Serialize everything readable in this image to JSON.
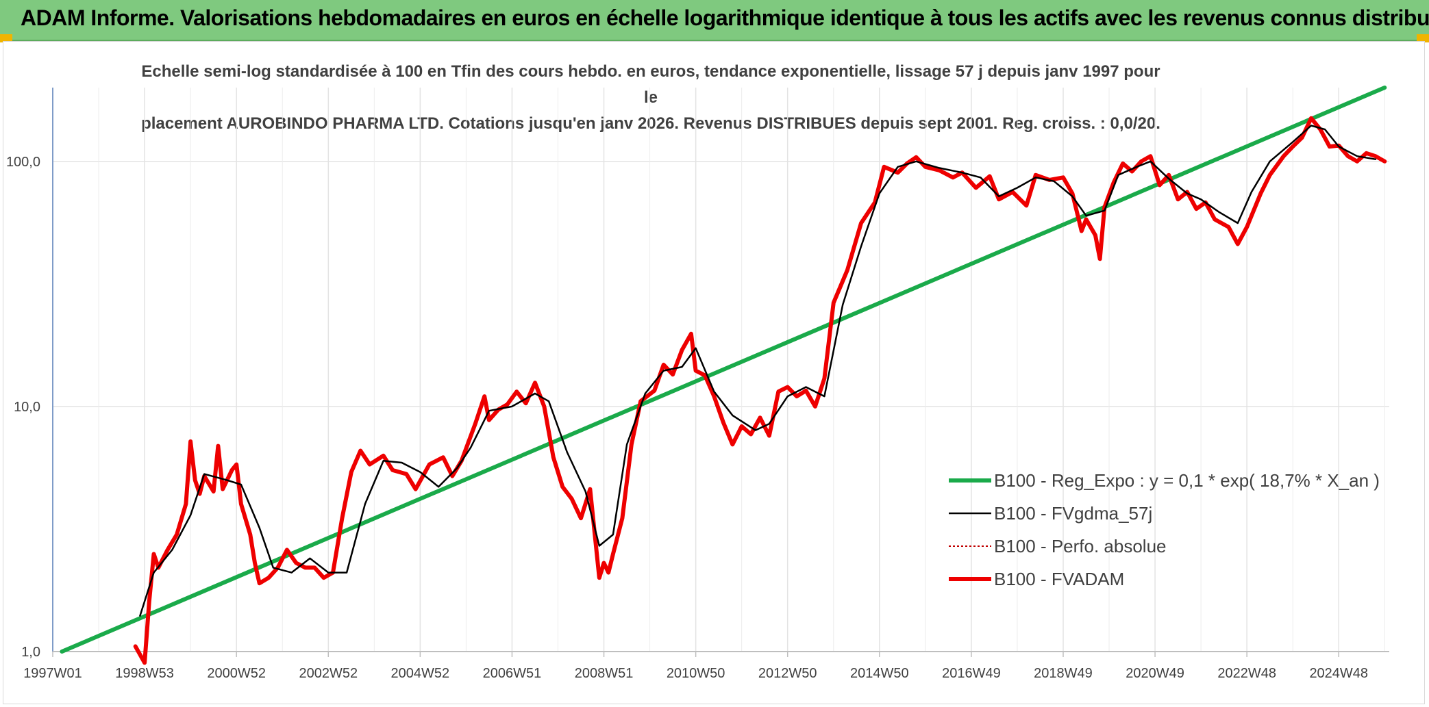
{
  "header": {
    "title": "ADAM Informe. Valorisations hebdomadaires en euros en échelle logarithmique identique à tous les actifs avec les revenus connus distribués",
    "background_color": "#7fc97f"
  },
  "chart_data": {
    "type": "line",
    "title_line1": "Echelle semi-log standardisée à 100 en Tfin des cours hebdo. en euros, tendance exponentielle, lissage 57 j depuis janv 1997 pour le",
    "title_line2": "placement AUROBINDO PHARMA LTD. Cotations jusqu'en janv 2026. Revenus DISTRIBUES depuis sept 2001. Reg. croiss. : 0,0/20.",
    "xlabel": "",
    "ylabel": "",
    "y_scale": "log",
    "ylim": [
      1,
      200
    ],
    "xlim": [
      1997.0,
      2026.1
    ],
    "y_ticks": [
      {
        "value": 1,
        "label": "1,0"
      },
      {
        "value": 10,
        "label": "10,0"
      },
      {
        "value": 100,
        "label": "100,0"
      }
    ],
    "x_ticks": [
      {
        "value": 1997.0,
        "label": "1997W01"
      },
      {
        "value": 1999.0,
        "label": "1998W53"
      },
      {
        "value": 2001.0,
        "label": "2000W52"
      },
      {
        "value": 2003.0,
        "label": "2002W52"
      },
      {
        "value": 2005.0,
        "label": "2004W52"
      },
      {
        "value": 2007.0,
        "label": "2006W51"
      },
      {
        "value": 2009.0,
        "label": "2008W51"
      },
      {
        "value": 2011.0,
        "label": "2010W50"
      },
      {
        "value": 2013.0,
        "label": "2012W50"
      },
      {
        "value": 2015.0,
        "label": "2014W50"
      },
      {
        "value": 2017.0,
        "label": "2016W49"
      },
      {
        "value": 2019.0,
        "label": "2018W49"
      },
      {
        "value": 2021.0,
        "label": "2020W49"
      },
      {
        "value": 2023.0,
        "label": "2022W48"
      },
      {
        "value": 2025.0,
        "label": "2024W48"
      }
    ],
    "grid": "vertical and horizontal",
    "legend_position": "bottom-right",
    "series": [
      {
        "name": "B100 - Reg_Expo : y = 0,1 * exp( 18,7% *  X_an )",
        "color": "#1aaa4a",
        "style": "solid-thick",
        "x": [
          1997.2,
          2026.0
        ],
        "y": [
          1.0,
          200.0
        ]
      },
      {
        "name": "B100 - FVgdma_57j",
        "color": "#000000",
        "style": "solid",
        "x": [
          1998.9,
          1999.2,
          1999.6,
          2000.0,
          2000.3,
          2000.8,
          2001.1,
          2001.5,
          2001.8,
          2002.2,
          2002.6,
          2003.0,
          2003.4,
          2003.8,
          2004.2,
          2004.6,
          2005.0,
          2005.4,
          2005.8,
          2006.1,
          2006.5,
          2007.0,
          2007.5,
          2007.8,
          2008.2,
          2008.6,
          2008.9,
          2009.2,
          2009.5,
          2009.9,
          2010.3,
          2010.7,
          2011.0,
          2011.4,
          2011.8,
          2012.3,
          2012.6,
          2013.0,
          2013.4,
          2013.8,
          2014.2,
          2014.6,
          2015.0,
          2015.4,
          2015.8,
          2016.3,
          2016.8,
          2017.2,
          2017.6,
          2018.0,
          2018.4,
          2018.8,
          2019.2,
          2019.5,
          2019.9,
          2020.2,
          2020.6,
          2020.9,
          2021.3,
          2021.7,
          2022.0,
          2022.4,
          2022.8,
          2023.1,
          2023.5,
          2024.0,
          2024.4,
          2024.7,
          2025.0,
          2025.4,
          2025.8
        ],
        "y": [
          1.4,
          2.1,
          2.6,
          3.6,
          5.3,
          5.0,
          4.8,
          3.2,
          2.2,
          2.1,
          2.4,
          2.1,
          2.1,
          4.0,
          6.0,
          5.9,
          5.4,
          4.7,
          5.6,
          6.8,
          9.6,
          10.0,
          11.3,
          10.5,
          6.5,
          4.5,
          2.7,
          3.0,
          7.0,
          11.3,
          14.0,
          14.5,
          17.3,
          11.5,
          9.2,
          8.0,
          8.5,
          11.0,
          12.0,
          11.0,
          26.0,
          45.0,
          74.0,
          95.0,
          100.0,
          94.0,
          90.0,
          86.0,
          72.0,
          78.0,
          86.0,
          83.0,
          72.0,
          60.0,
          63.0,
          88.0,
          95.0,
          100.0,
          85.0,
          74.0,
          70.0,
          62.0,
          56.0,
          75.0,
          100.0,
          120.0,
          140.0,
          135.0,
          115.0,
          105.0,
          102.0
        ]
      },
      {
        "name": "B100 - Perfo. absolue",
        "color": "#c00000",
        "style": "dotted",
        "x": [],
        "y": []
      },
      {
        "name": "B100 - FVADAM",
        "color": "#ee0000",
        "style": "solid-thick",
        "x": [
          1998.8,
          1999.0,
          1999.1,
          1999.2,
          1999.3,
          1999.5,
          1999.7,
          1999.9,
          2000.0,
          2000.1,
          2000.2,
          2000.3,
          2000.5,
          2000.6,
          2000.7,
          2000.9,
          2001.0,
          2001.1,
          2001.3,
          2001.4,
          2001.5,
          2001.7,
          2001.9,
          2002.1,
          2002.3,
          2002.5,
          2002.7,
          2002.9,
          2003.1,
          2003.3,
          2003.5,
          2003.7,
          2003.9,
          2004.2,
          2004.4,
          2004.7,
          2004.9,
          2005.2,
          2005.5,
          2005.7,
          2005.9,
          2006.2,
          2006.4,
          2006.5,
          2006.7,
          2006.9,
          2007.1,
          2007.3,
          2007.5,
          2007.7,
          2007.9,
          2008.1,
          2008.3,
          2008.5,
          2008.7,
          2008.9,
          2009.0,
          2009.1,
          2009.2,
          2009.4,
          2009.6,
          2009.8,
          2010.1,
          2010.3,
          2010.5,
          2010.7,
          2010.9,
          2011.0,
          2011.2,
          2011.4,
          2011.6,
          2011.8,
          2012.0,
          2012.2,
          2012.4,
          2012.6,
          2012.8,
          2013.0,
          2013.2,
          2013.4,
          2013.6,
          2013.8,
          2014.0,
          2014.3,
          2014.6,
          2014.9,
          2015.1,
          2015.4,
          2015.6,
          2015.8,
          2016.0,
          2016.3,
          2016.6,
          2016.8,
          2017.1,
          2017.4,
          2017.6,
          2017.9,
          2018.2,
          2018.4,
          2018.7,
          2019.0,
          2019.2,
          2019.4,
          2019.5,
          2019.7,
          2019.8,
          2019.9,
          2020.1,
          2020.3,
          2020.5,
          2020.7,
          2020.9,
          2021.1,
          2021.3,
          2021.5,
          2021.7,
          2021.9,
          2022.1,
          2022.3,
          2022.6,
          2022.8,
          2023.0,
          2023.3,
          2023.5,
          2023.8,
          2024.0,
          2024.2,
          2024.4,
          2024.6,
          2024.8,
          2025.0,
          2025.2,
          2025.4,
          2025.6,
          2025.8,
          2026.0
        ],
        "y": [
          1.05,
          0.9,
          1.6,
          2.5,
          2.2,
          2.6,
          3.0,
          4.0,
          7.2,
          5.0,
          4.4,
          5.2,
          4.5,
          6.9,
          4.6,
          5.5,
          5.8,
          4.0,
          3.0,
          2.3,
          1.9,
          2.0,
          2.2,
          2.6,
          2.3,
          2.2,
          2.2,
          2.0,
          2.1,
          3.5,
          5.4,
          6.6,
          5.8,
          6.3,
          5.5,
          5.3,
          4.6,
          5.8,
          6.2,
          5.2,
          6.0,
          8.5,
          11.0,
          8.8,
          9.7,
          10.2,
          11.5,
          10.3,
          12.5,
          10.0,
          6.2,
          4.7,
          4.2,
          3.5,
          4.6,
          2.0,
          2.3,
          2.1,
          2.5,
          3.5,
          7.0,
          10.5,
          11.6,
          14.8,
          13.5,
          17.0,
          19.8,
          14.0,
          13.4,
          11.0,
          8.6,
          7.0,
          8.3,
          7.7,
          9.0,
          7.6,
          11.5,
          12.0,
          11.0,
          11.6,
          10.0,
          13.0,
          26.5,
          36.0,
          56.0,
          68.0,
          95.0,
          90.0,
          98.0,
          104.0,
          95.0,
          92.0,
          86.0,
          90.0,
          78.0,
          87.0,
          70.0,
          75.0,
          66.0,
          88.0,
          84.0,
          86.0,
          74.0,
          52.0,
          58.0,
          50.0,
          40.0,
          65.0,
          82.0,
          98.0,
          91.0,
          100.0,
          105.0,
          80.0,
          88.0,
          70.0,
          75.0,
          64.0,
          68.0,
          58.0,
          54.0,
          46.0,
          54.0,
          74.0,
          88.0,
          105.0,
          115.0,
          125.0,
          150.0,
          135.0,
          115.0,
          116.0,
          105.0,
          100.0,
          108.0,
          105.0,
          100.0
        ]
      }
    ]
  }
}
